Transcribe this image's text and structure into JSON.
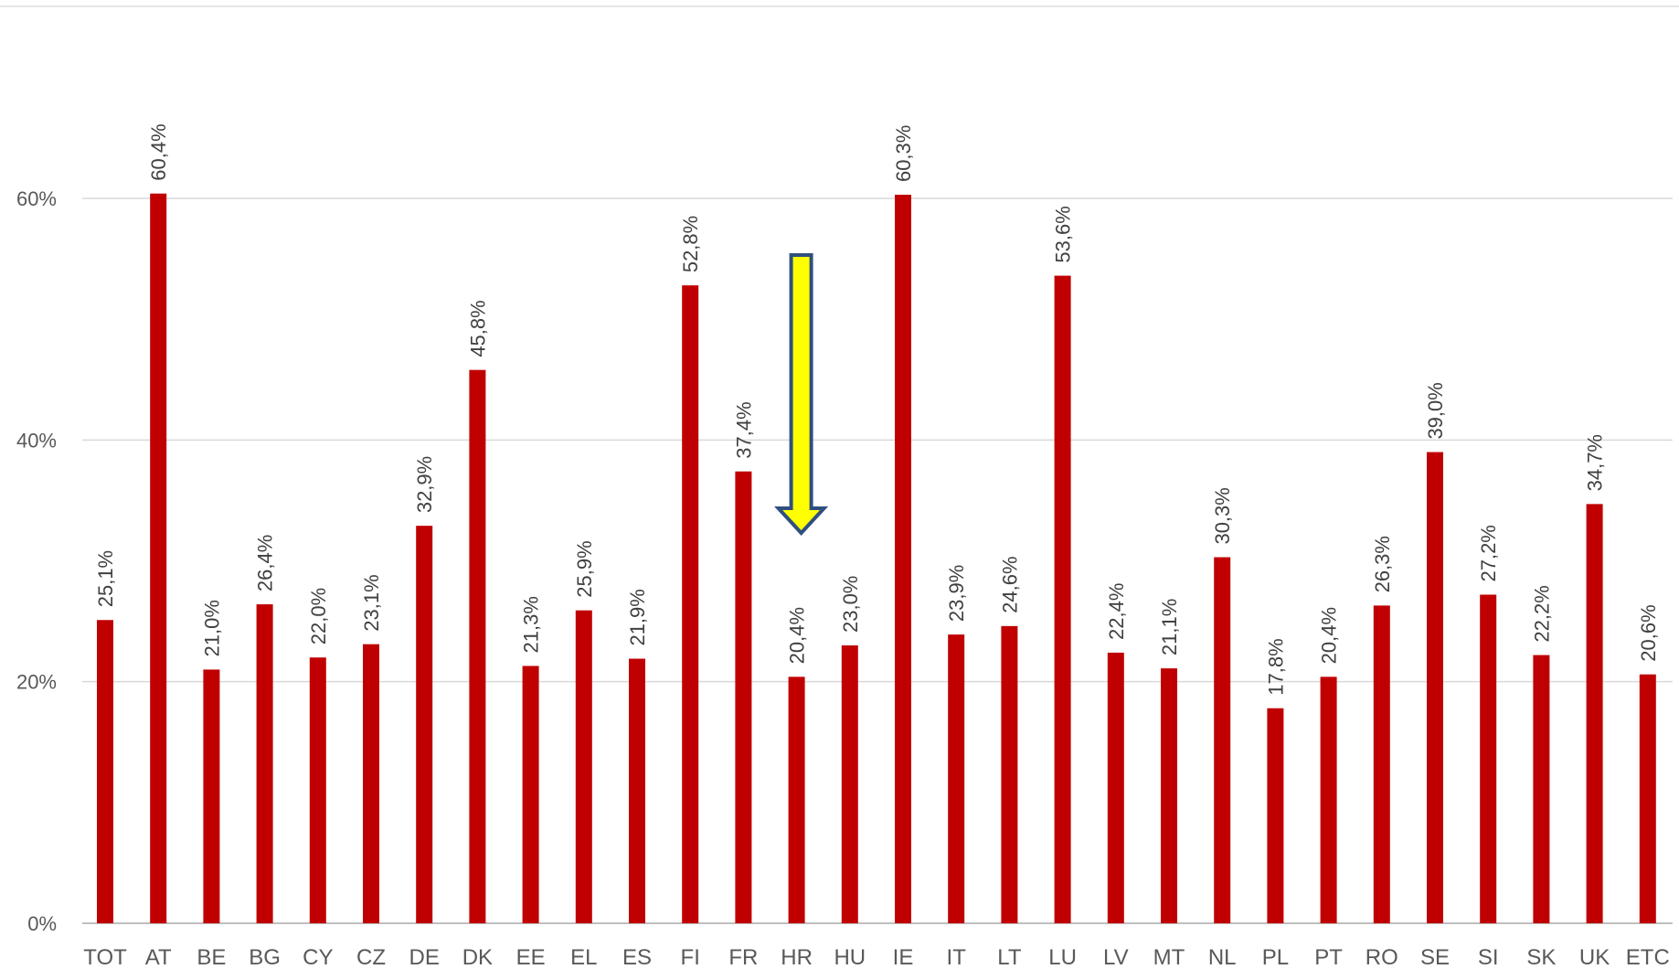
{
  "chart_data": {
    "type": "bar",
    "categories": [
      "TOT",
      "AT",
      "BE",
      "BG",
      "CY",
      "CZ",
      "DE",
      "DK",
      "EE",
      "EL",
      "ES",
      "FI",
      "FR",
      "HR",
      "HU",
      "IE",
      "IT",
      "LT",
      "LU",
      "LV",
      "MT",
      "NL",
      "PL",
      "PT",
      "RO",
      "SE",
      "SI",
      "SK",
      "UK",
      "ETC"
    ],
    "values": [
      25.1,
      60.4,
      21.0,
      26.4,
      22.0,
      23.1,
      32.9,
      45.8,
      21.3,
      25.9,
      21.9,
      52.8,
      37.4,
      20.4,
      23.0,
      60.3,
      23.9,
      24.6,
      53.6,
      22.4,
      21.1,
      30.3,
      17.8,
      20.4,
      26.3,
      39.0,
      27.2,
      22.2,
      34.7,
      20.6
    ],
    "value_labels": [
      "25,1%",
      "60,4%",
      "21,0%",
      "26,4%",
      "22,0%",
      "23,1%",
      "32,9%",
      "45,8%",
      "21,3%",
      "25,9%",
      "21,9%",
      "52,8%",
      "37,4%",
      "20,4%",
      "23,0%",
      "60,3%",
      "23,9%",
      "24,6%",
      "53,6%",
      "22,4%",
      "21,1%",
      "30,3%",
      "17,8%",
      "20,4%",
      "26,3%",
      "39,0%",
      "27,2%",
      "22,2%",
      "34,7%",
      "20,6%"
    ],
    "y_ticks": [
      0,
      20,
      40,
      60
    ],
    "y_tick_labels": [
      "0%",
      "20%",
      "40%",
      "60%"
    ],
    "ylim": [
      0,
      60
    ],
    "grid": true,
    "legend": "none",
    "highlight_category": "HR",
    "colors": {
      "bar": "#c00000",
      "gridline": "#d9d9d9",
      "arrow_fill": "#ffff00",
      "arrow_stroke": "#2f4f7f"
    }
  }
}
